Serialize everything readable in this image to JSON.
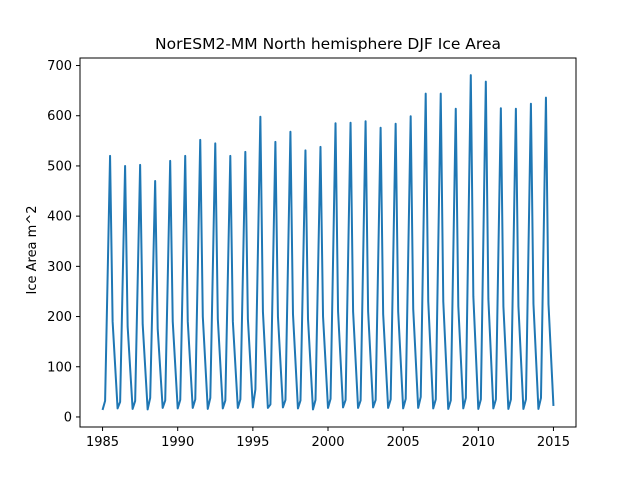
{
  "chart_data": {
    "type": "line",
    "title": "NorESM2-MM North hemisphere DJF Ice Area",
    "xlabel": "",
    "ylabel": "Ice Area m^2",
    "xlim": [
      1983.5,
      2016.5
    ],
    "ylim": [
      -20,
      715
    ],
    "xticks": [
      1985,
      1990,
      1995,
      2000,
      2005,
      2010,
      2015
    ],
    "yticks": [
      0,
      100,
      200,
      300,
      400,
      500,
      600,
      700
    ],
    "grid": false,
    "color": "#1f77b4",
    "series": [
      {
        "x": [
          1985.0,
          1985.17,
          1985.5,
          1985.67,
          1986.0,
          1986.17,
          1986.5,
          1986.67,
          1987.0,
          1987.17,
          1987.5,
          1987.67,
          1988.0,
          1988.17,
          1988.5,
          1988.67,
          1989.0,
          1989.17,
          1989.5,
          1989.67,
          1990.0,
          1990.17,
          1990.5,
          1990.67,
          1991.0,
          1991.17,
          1991.5,
          1991.67,
          1992.0,
          1992.17,
          1992.5,
          1992.67,
          1993.0,
          1993.17,
          1993.5,
          1993.67,
          1994.0,
          1994.17,
          1994.5,
          1994.67,
          1995.0,
          1995.17,
          1995.5,
          1995.67,
          1996.0,
          1996.17,
          1996.5,
          1996.67,
          1997.0,
          1997.17,
          1997.5,
          1997.67,
          1998.0,
          1998.17,
          1998.5,
          1998.67,
          1999.0,
          1999.17,
          1999.5,
          1999.67,
          2000.0,
          2000.17,
          2000.5,
          2000.67,
          2001.0,
          2001.17,
          2001.5,
          2001.67,
          2002.0,
          2002.17,
          2002.5,
          2002.67,
          2003.0,
          2003.17,
          2003.5,
          2003.67,
          2004.0,
          2004.17,
          2004.5,
          2004.67,
          2005.0,
          2005.17,
          2005.5,
          2005.67,
          2006.0,
          2006.17,
          2006.5,
          2006.67,
          2007.0,
          2007.17,
          2007.5,
          2007.67,
          2008.0,
          2008.17,
          2008.5,
          2008.67,
          2009.0,
          2009.17,
          2009.5,
          2009.67,
          2010.0,
          2010.17,
          2010.5,
          2010.67,
          2011.0,
          2011.17,
          2011.5,
          2011.67,
          2012.0,
          2012.17,
          2012.5,
          2012.67,
          2013.0,
          2013.17,
          2013.5,
          2013.67,
          2014.0,
          2014.17,
          2014.5,
          2014.67,
          2015.0
        ],
        "y": [
          14,
          32,
          520,
          190,
          17,
          30,
          500,
          180,
          16,
          32,
          502,
          185,
          15,
          38,
          470,
          175,
          18,
          33,
          510,
          190,
          17,
          34,
          520,
          190,
          18,
          35,
          552,
          200,
          16,
          38,
          545,
          195,
          17,
          33,
          520,
          190,
          18,
          35,
          528,
          195,
          19,
          55,
          598,
          210,
          18,
          25,
          548,
          200,
          19,
          34,
          568,
          205,
          17,
          33,
          531,
          195,
          15,
          34,
          538,
          200,
          18,
          36,
          585,
          210,
          19,
          34,
          586,
          210,
          18,
          33,
          589,
          210,
          19,
          34,
          576,
          205,
          18,
          35,
          584,
          210,
          17,
          36,
          599,
          215,
          18,
          40,
          644,
          230,
          17,
          35,
          644,
          230,
          16,
          33,
          614,
          220,
          17,
          38,
          681,
          240,
          16,
          35,
          668,
          235,
          17,
          35,
          615,
          220,
          16,
          35,
          614,
          220,
          16,
          35,
          624,
          225,
          16,
          38,
          636,
          225,
          22
        ]
      }
    ]
  }
}
